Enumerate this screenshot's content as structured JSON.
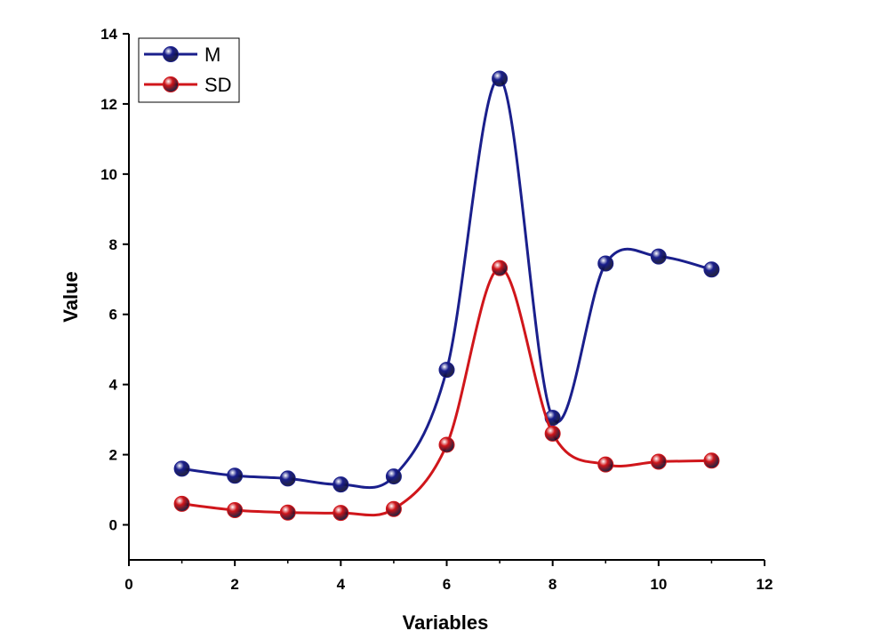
{
  "chart_data": {
    "type": "line",
    "xlabel": "Variables",
    "ylabel": "Value",
    "xlim": [
      0,
      12
    ],
    "ylim": [
      -1,
      14
    ],
    "x_ticks": [
      0,
      2,
      4,
      6,
      8,
      10,
      12
    ],
    "y_ticks": [
      0,
      2,
      4,
      6,
      8,
      10,
      12,
      14
    ],
    "grid": false,
    "legend_position": "top-left",
    "x": [
      1,
      2,
      3,
      4,
      5,
      6,
      7,
      8,
      9,
      10,
      11
    ],
    "series": [
      {
        "name": "M",
        "color": "#1a1f8c",
        "values": [
          1.6,
          1.4,
          1.32,
          1.15,
          1.38,
          4.42,
          12.72,
          3.05,
          7.45,
          7.65,
          7.28
        ]
      },
      {
        "name": "SD",
        "color": "#d0161b",
        "values": [
          0.6,
          0.42,
          0.35,
          0.34,
          0.45,
          2.28,
          7.32,
          2.6,
          1.72,
          1.8,
          1.83
        ]
      }
    ]
  }
}
